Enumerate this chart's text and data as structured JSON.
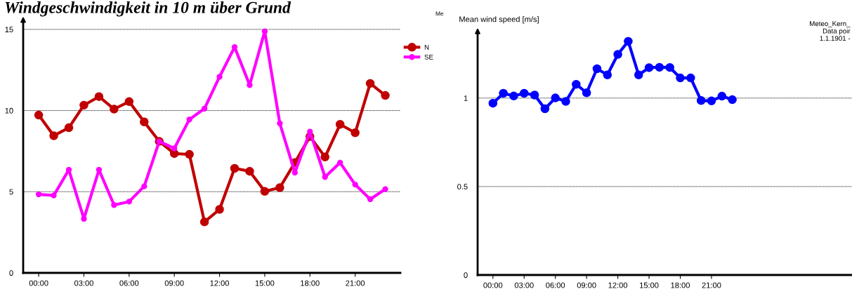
{
  "chart_data": [
    {
      "type": "line",
      "title": "Windgeschwindigkeit in 10 m über Grund",
      "annotations": [
        "Me"
      ],
      "x": [
        0,
        1,
        2,
        3,
        4,
        5,
        6,
        7,
        8,
        9,
        10,
        11,
        12,
        13,
        14,
        15,
        16,
        17,
        18,
        19,
        20,
        21,
        22,
        23
      ],
      "series": [
        {
          "name": "N",
          "color": "#c00000",
          "values": [
            9.72,
            8.45,
            8.94,
            10.33,
            10.86,
            10.09,
            10.55,
            9.3,
            8.1,
            7.35,
            7.3,
            3.14,
            3.91,
            6.44,
            6.26,
            5.02,
            5.25,
            6.79,
            8.4,
            7.14,
            9.15,
            8.63,
            11.67,
            10.93
          ]
        },
        {
          "name": "SE",
          "color": "#ff00ff",
          "values": [
            4.84,
            4.77,
            6.35,
            3.33,
            6.35,
            4.18,
            4.39,
            5.33,
            8.1,
            7.67,
            9.45,
            10.12,
            12.08,
            13.91,
            11.57,
            14.88,
            9.21,
            6.18,
            8.7,
            5.91,
            6.79,
            5.44,
            4.54,
            5.16
          ]
        }
      ],
      "xlim": [
        -1.03,
        24
      ],
      "ylim": [
        0,
        15.6
      ],
      "xticks": [
        {
          "value": 0,
          "label": "00:00"
        },
        {
          "value": 3,
          "label": "03:00"
        },
        {
          "value": 6,
          "label": "06:00"
        },
        {
          "value": 9,
          "label": "09:00"
        },
        {
          "value": 12,
          "label": "12:00"
        },
        {
          "value": 15,
          "label": "15:00"
        },
        {
          "value": 18,
          "label": "18:00"
        },
        {
          "value": 21,
          "label": "21:00"
        }
      ],
      "yticks": [
        0,
        5,
        10,
        15
      ],
      "grid": "y",
      "legend": "top right",
      "marker": "circle",
      "line_style": "solid"
    },
    {
      "type": "line",
      "ylabel": "Mean wind speed [m/s]",
      "annotations": [
        "Meteo_Kern_\nData poir\n1.1.1901 -"
      ],
      "x": [
        0,
        1,
        2,
        3,
        4,
        5,
        6,
        7,
        8,
        9,
        10,
        11,
        12,
        13,
        14,
        15,
        16,
        17,
        18,
        19,
        20,
        21,
        22,
        23
      ],
      "series": [
        {
          "color": "#0000ff",
          "values": [
            0.971,
            1.027,
            1.012,
            1.027,
            1.017,
            0.94,
            1.001,
            0.981,
            1.078,
            1.03,
            1.166,
            1.131,
            1.247,
            1.321,
            1.131,
            1.172,
            1.174,
            1.173,
            1.114,
            1.114,
            0.986,
            0.984,
            1.011,
            0.991
          ]
        }
      ],
      "xlim": [
        -1.47,
        34.5
      ],
      "ylim": [
        0,
        1.38
      ],
      "xticks": [
        {
          "value": 0,
          "label": "00:00"
        },
        {
          "value": 3,
          "label": "03:00"
        },
        {
          "value": 6,
          "label": "06:00"
        },
        {
          "value": 9,
          "label": "09:00"
        },
        {
          "value": 12,
          "label": "12:00"
        },
        {
          "value": 15,
          "label": "15:00"
        },
        {
          "value": 18,
          "label": "18:00"
        },
        {
          "value": 21,
          "label": "21:00"
        }
      ],
      "yticks": [
        0,
        0.5,
        1
      ],
      "grid": "y",
      "legend": false,
      "marker": "circle",
      "line_style": "solid"
    }
  ]
}
